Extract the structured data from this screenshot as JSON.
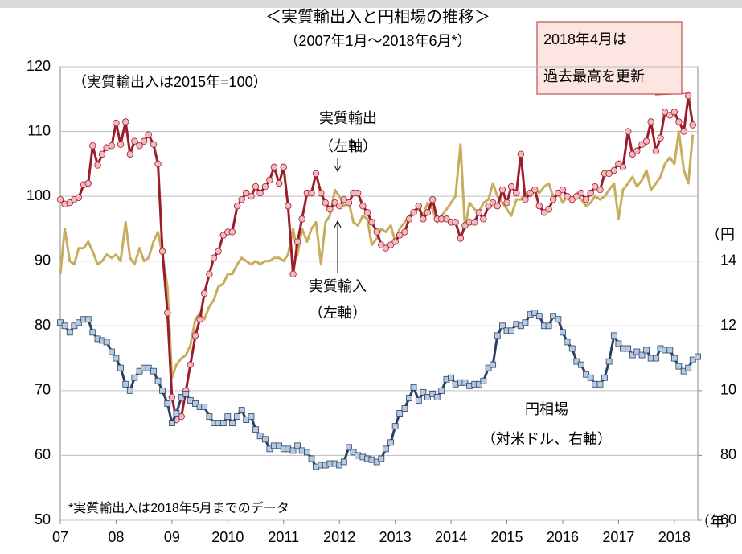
{
  "chart_data": {
    "type": "line",
    "title": "＜実質輸出入と円相場の推移＞",
    "subtitle": "（2007年1月～2018年6月*）",
    "note": "（実質輸出入は2015年=100）",
    "footnote": "*実質輸出入は2018年5月までのデータ",
    "annotation": [
      "2018年4月は",
      "過去最高を更新"
    ],
    "series_labels": [
      [
        "実質輸出",
        "（左軸）"
      ],
      [
        "実質輸入",
        "（左軸）"
      ],
      [
        "円相場",
        "（対米ドル、右軸）"
      ]
    ],
    "xlabel": "（年）",
    "y2label": "（円",
    "xlim": [
      2007,
      2018.42
    ],
    "xticks": [
      {
        "value": 2007,
        "label": "07"
      },
      {
        "value": 2008,
        "label": "08"
      },
      {
        "value": 2009,
        "label": "09"
      },
      2010,
      2011,
      2012,
      2013,
      2014,
      2015,
      2016,
      2017,
      2018
    ],
    "ylim": [
      50,
      120
    ],
    "yticks": [
      50,
      60,
      70,
      80,
      90,
      100,
      110,
      120
    ],
    "y2lim": [
      60,
      200
    ],
    "y2ticks": [
      60,
      80,
      {
        "value": 100,
        "label": "10"
      },
      {
        "value": 120,
        "label": "12"
      },
      {
        "value": 140,
        "label": "14"
      }
    ],
    "grid": true,
    "x": [
      2007,
      2007.08,
      2007.17,
      2007.25,
      2007.33,
      2007.42,
      2007.5,
      2007.58,
      2007.67,
      2007.75,
      2007.83,
      2007.92,
      2008,
      2008.08,
      2008.17,
      2008.25,
      2008.33,
      2008.42,
      2008.5,
      2008.58,
      2008.67,
      2008.75,
      2008.83,
      2008.92,
      2009,
      2009.08,
      2009.17,
      2009.25,
      2009.33,
      2009.42,
      2009.5,
      2009.58,
      2009.67,
      2009.75,
      2009.83,
      2009.92,
      2010,
      2010.08,
      2010.17,
      2010.25,
      2010.33,
      2010.42,
      2010.5,
      2010.58,
      2010.67,
      2010.75,
      2010.83,
      2010.92,
      2011,
      2011.08,
      2011.17,
      2011.25,
      2011.33,
      2011.42,
      2011.5,
      2011.58,
      2011.67,
      2011.75,
      2011.83,
      2011.92,
      2012,
      2012.08,
      2012.17,
      2012.25,
      2012.33,
      2012.42,
      2012.5,
      2012.58,
      2012.67,
      2012.75,
      2012.83,
      2012.92,
      2013,
      2013.08,
      2013.17,
      2013.25,
      2013.33,
      2013.42,
      2013.5,
      2013.58,
      2013.67,
      2013.75,
      2013.83,
      2013.92,
      2014,
      2014.08,
      2014.17,
      2014.25,
      2014.33,
      2014.42,
      2014.5,
      2014.58,
      2014.67,
      2014.75,
      2014.83,
      2014.92,
      2015,
      2015.08,
      2015.17,
      2015.25,
      2015.33,
      2015.42,
      2015.5,
      2015.58,
      2015.67,
      2015.75,
      2015.83,
      2015.92,
      2016,
      2016.08,
      2016.17,
      2016.25,
      2016.33,
      2016.42,
      2016.5,
      2016.58,
      2016.67,
      2016.75,
      2016.83,
      2016.92,
      2017,
      2017.08,
      2017.17,
      2017.25,
      2017.33,
      2017.42,
      2017.5,
      2017.58,
      2017.67,
      2017.75,
      2017.83,
      2017.92,
      2018,
      2018.08,
      2018.17,
      2018.25,
      2018.33,
      2018.42
    ],
    "series": [
      {
        "name": "実質輸入",
        "color": "#c9ad5f",
        "marker": "none",
        "values": [
          88,
          95,
          90,
          89.5,
          92,
          92,
          93,
          91.5,
          89.5,
          90,
          91,
          90.5,
          91,
          90,
          96,
          90.5,
          89.5,
          92,
          90,
          90.5,
          93,
          94.5,
          91,
          86,
          72,
          74,
          75,
          75.5,
          77,
          81,
          82,
          81,
          83,
          84,
          86,
          86.5,
          88,
          88,
          89.5,
          90.5,
          90,
          89.5,
          90,
          89.5,
          90,
          90,
          90.5,
          90.5,
          90,
          91,
          95,
          91,
          95,
          93,
          95,
          96,
          89.5,
          96,
          97,
          101,
          100,
          98.5,
          99,
          96,
          95.5,
          97,
          96.5,
          92.5,
          93.5,
          95,
          94.5,
          95.5,
          93,
          95,
          96,
          97,
          97.5,
          98,
          97,
          99,
          98,
          96,
          97,
          98,
          99,
          100,
          108,
          95,
          99,
          98,
          97.5,
          99,
          99.5,
          102,
          100,
          99,
          98,
          97,
          99.5,
          99.5,
          100.5,
          100,
          101,
          100.5,
          101.5,
          102,
          100,
          100.5,
          99,
          100,
          99,
          100.5,
          99.5,
          98.5,
          99,
          100,
          99.5,
          100,
          101,
          102,
          96.5,
          101,
          102,
          103,
          101.5,
          102.5,
          104,
          101,
          102,
          103,
          105,
          106,
          105,
          110,
          104,
          102,
          109.5,
          null
        ]
      },
      {
        "name": "実質輸出",
        "color": "#9b1c2a",
        "marker": "circle",
        "marker_fill": "#f5b8be",
        "values": [
          99.5,
          98.8,
          99,
          99.5,
          99.8,
          101.8,
          102,
          107.8,
          104.8,
          106.5,
          107.5,
          107.8,
          111.3,
          108,
          111.5,
          106.5,
          108.5,
          107.8,
          108.5,
          109.5,
          108,
          105,
          91.5,
          82,
          69,
          65.5,
          66,
          70,
          74,
          78.5,
          81,
          85,
          88,
          90.5,
          91.5,
          94,
          94.5,
          94.5,
          98.5,
          99.5,
          100.5,
          100,
          101.5,
          100.5,
          101.5,
          102.5,
          104.5,
          102,
          104.5,
          98.5,
          88,
          93,
          96.5,
          100.5,
          100.5,
          103.5,
          100.5,
          99,
          98,
          99,
          98.5,
          99.5,
          99,
          100.5,
          100.5,
          98.5,
          97.5,
          96,
          94.5,
          92.5,
          92,
          92.5,
          93,
          94,
          94.5,
          96.5,
          97.5,
          98.5,
          96.5,
          97.5,
          99.5,
          96.5,
          96.5,
          96.5,
          96,
          96,
          93.5,
          95.5,
          96,
          96,
          97.5,
          96.5,
          98.5,
          99,
          98.5,
          101,
          99,
          101.5,
          100.5,
          106.5,
          99.5,
          100.5,
          101,
          98.5,
          97.5,
          98,
          99.5,
          100.5,
          101,
          100,
          99.5,
          100,
          100.5,
          99.5,
          100.5,
          101.5,
          101,
          103.5,
          103.5,
          104,
          105,
          104.5,
          110,
          106.5,
          107,
          108,
          108.5,
          111.5,
          107,
          109,
          113,
          112.5,
          113,
          111.5,
          110,
          115.5,
          111,
          null
        ]
      },
      {
        "name": "円相場",
        "color": "#2f3f60",
        "marker": "square",
        "marker_fill": "#b4cbe4",
        "axis": "y2",
        "values": [
          121,
          120,
          118,
          120,
          121,
          122,
          122,
          118,
          116,
          115.5,
          115,
          112,
          110,
          107,
          102,
          100,
          104,
          106,
          107,
          107,
          106,
          103,
          100,
          96,
          90,
          93,
          98,
          99,
          97,
          96,
          95,
          95,
          92,
          90,
          90,
          90,
          92,
          90,
          92,
          94,
          91,
          92,
          88,
          86,
          85,
          82,
          83,
          83,
          82,
          82,
          81.5,
          83,
          81.5,
          81,
          79,
          76.5,
          77,
          77,
          77.5,
          77.5,
          77,
          78,
          82.5,
          81,
          80,
          79.5,
          79,
          78.7,
          78,
          79,
          82,
          84,
          89,
          93,
          94.5,
          97.7,
          101,
          97,
          99.5,
          98,
          99,
          98,
          100,
          103.5,
          104,
          102,
          102.5,
          102.5,
          101.5,
          102,
          102,
          103,
          107,
          108,
          117,
          120,
          118.5,
          118.5,
          120.5,
          120,
          121,
          123.5,
          124,
          123,
          120,
          120,
          123,
          122,
          118,
          115,
          113,
          109,
          108,
          105,
          104,
          102,
          102,
          104,
          109,
          117,
          114.5,
          113,
          113,
          111,
          112,
          111,
          112.5,
          110,
          110,
          113,
          112.5,
          112.5,
          110,
          107.5,
          106,
          107,
          109.5,
          110.5
        ]
      }
    ]
  }
}
